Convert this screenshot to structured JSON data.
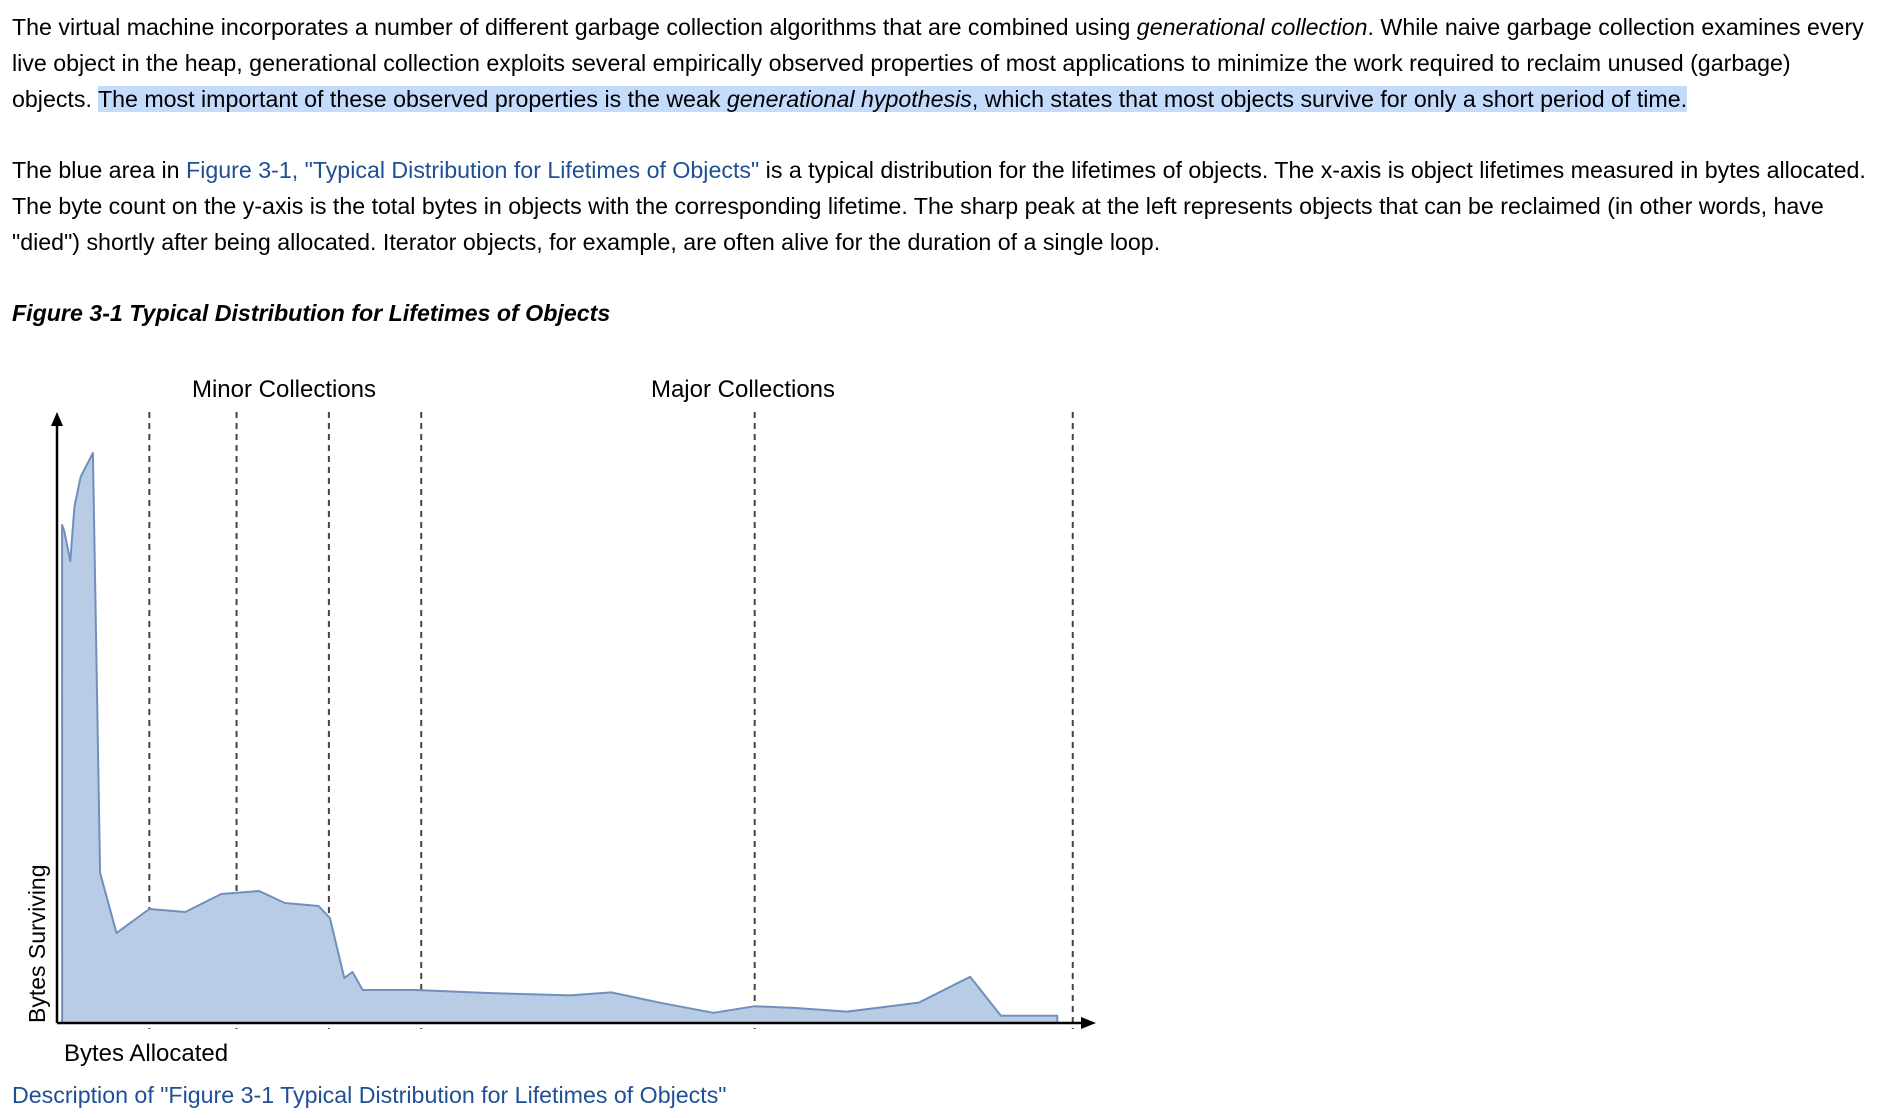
{
  "article": {
    "p1": {
      "s1_before": "The virtual machine incorporates a number of different garbage collection algorithms that are combined using ",
      "s1_em": "generational collection",
      "s1_after": ". While naive garbage collection examines every live object in the heap, generational collection exploits several empirically observed properties of most applications to minimize the work required to reclaim unused (garbage) objects. ",
      "s2_before": "The most important of these observed properties is the weak ",
      "s2_em": "generational hypothesis",
      "s2_after": ", which states that most objects survive for only a short period of time."
    },
    "p2": {
      "before": "The blue area in ",
      "link": "Figure 3-1, \"Typical Distribution for Lifetimes of Objects\"",
      "after": " is a typical distribution for the lifetimes of objects. The x-axis is object lifetimes measured in bytes allocated. The byte count on the y-axis is the total bytes in objects with the corresponding lifetime. The sharp peak at the left represents objects that can be reclaimed (in other words, have \"died\") shortly after being allocated. Iterator objects, for example, are often alive for the duration of a single loop."
    },
    "figure_title": "Figure 3-1 Typical Distribution for Lifetimes of Objects",
    "description_link": "Description of \"Figure 3-1 Typical Distribution for Lifetimes of Objects\""
  },
  "colors": {
    "text": "#000000",
    "link": "#1f4f95",
    "selection": "#c5dbfb",
    "area_fill": "#b9cce6",
    "area_stroke": "#6f8fbd"
  },
  "chart_data": {
    "type": "area",
    "title": "",
    "xlabel": "Bytes Allocated",
    "ylabel": "Bytes Surviving",
    "ylim": [
      0,
      100
    ],
    "xlim": [
      0,
      100
    ],
    "grid": false,
    "collection_labels": [
      "Minor Collections",
      "Major Collections"
    ],
    "minor_collection_x": [
      9,
      17.5,
      26.5,
      35.5
    ],
    "major_collection_x": [
      68,
      99
    ],
    "series": [
      {
        "x": [
          0.5,
          0.7,
          1.3,
          1.7,
          2.3,
          3.5,
          4.2,
          5.8,
          9.0,
          12.5,
          16.0,
          19.7,
          22.2,
          25.5,
          26.6,
          28.0,
          28.8,
          29.8,
          35.0,
          42.0,
          50.0,
          54.0,
          59.0,
          64.0,
          68.0,
          72.0,
          77.0,
          84.0,
          89.0,
          92.0,
          94.0,
          97.5
        ],
        "y": [
          83,
          82,
          77,
          86,
          91,
          95,
          25,
          15,
          19,
          18.5,
          21.5,
          22,
          20,
          19.5,
          17.5,
          7.5,
          8.5,
          5.5,
          5.5,
          5.0,
          4.6,
          5.1,
          3.3,
          1.7,
          2.8,
          2.5,
          1.9,
          3.4,
          7.7,
          1.2,
          1.2,
          1.2
        ]
      }
    ]
  }
}
